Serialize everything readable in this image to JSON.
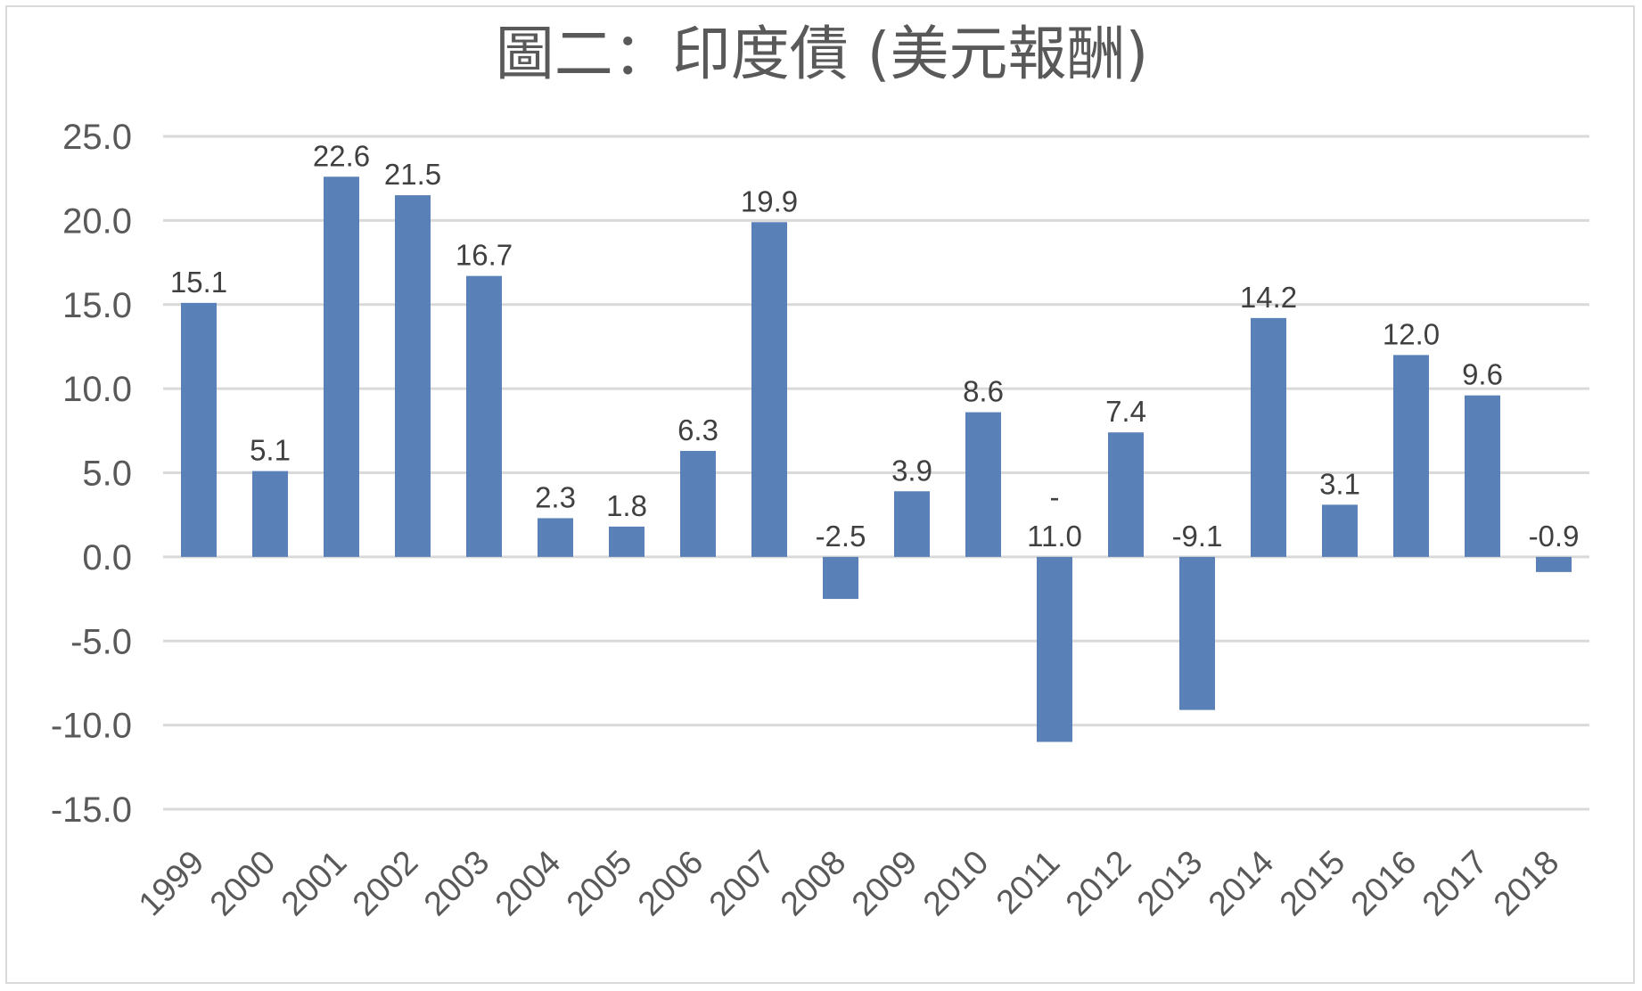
{
  "chart_data": {
    "type": "bar",
    "title": "圖二：印度債 (美元報酬)",
    "xlabel": "",
    "ylabel": "",
    "categories": [
      "1999",
      "2000",
      "2001",
      "2002",
      "2003",
      "2004",
      "2005",
      "2006",
      "2007",
      "2008",
      "2009",
      "2010",
      "2011",
      "2012",
      "2013",
      "2014",
      "2015",
      "2016",
      "2017",
      "2018"
    ],
    "values": [
      15.1,
      5.1,
      22.6,
      21.5,
      16.7,
      2.3,
      1.8,
      6.3,
      19.9,
      -2.5,
      3.9,
      8.6,
      -11.0,
      7.4,
      -9.1,
      14.2,
      3.1,
      12.0,
      9.6,
      -0.9
    ],
    "data_labels": [
      "15.1",
      "5.1",
      "22.6",
      "21.5",
      "16.7",
      "2.3",
      "1.8",
      "6.3",
      "19.9",
      "-2.5",
      "3.9",
      "8.6",
      "-\n11.0",
      "7.4",
      "-9.1",
      "14.2",
      "3.1",
      "12.0",
      "9.6",
      "-0.9"
    ],
    "ylim": [
      -15,
      25
    ],
    "yticks": [
      25,
      20,
      15,
      10,
      5,
      0,
      -5,
      -10,
      -15
    ],
    "ytick_labels": [
      "25.0",
      "20.0",
      "15.0",
      "10.0",
      "5.0",
      "0.0",
      "-5.0",
      "-10.0",
      "-15.0"
    ],
    "grid": true,
    "legend": "none",
    "colors": {
      "bar": "#5a80b8",
      "grid": "#d9d9d9",
      "text": "#595959",
      "label": "#404040"
    }
  }
}
